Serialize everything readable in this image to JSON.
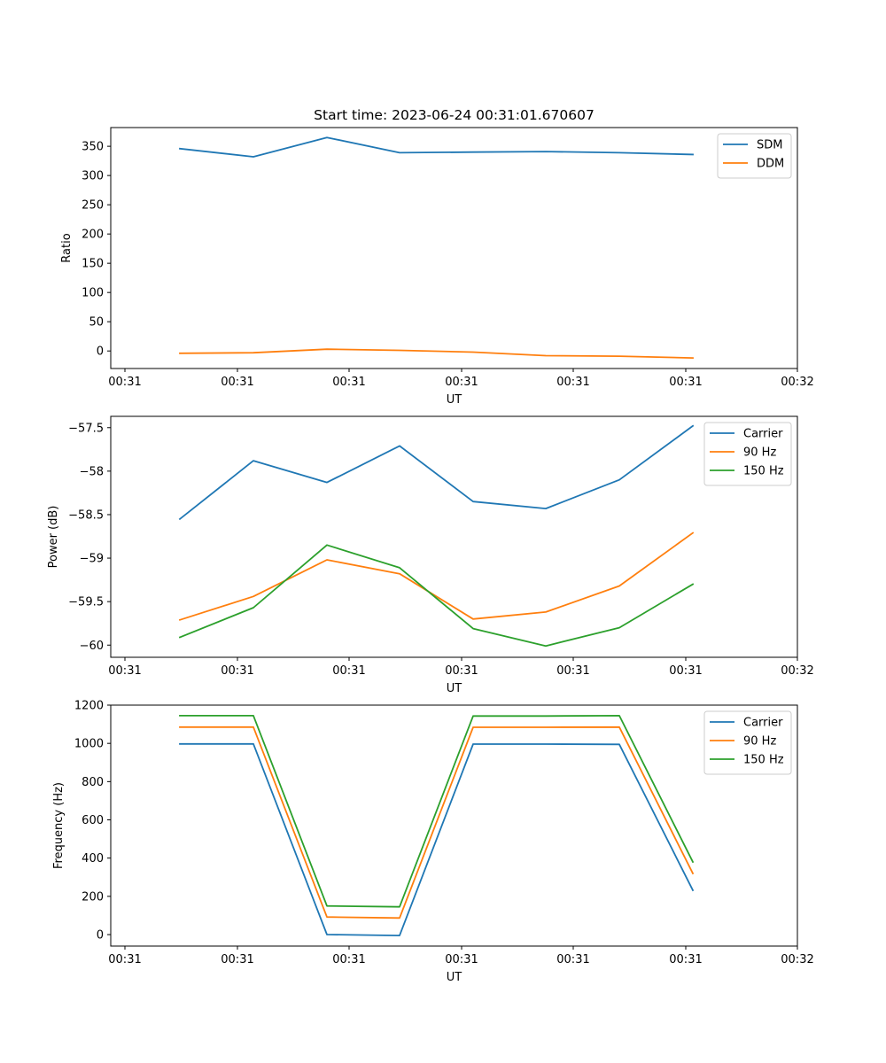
{
  "chart_data": [
    {
      "type": "line",
      "title": "Start time: 2023-06-24 00:31:01.670607",
      "xlabel": "UT",
      "ylabel": "Ratio",
      "x_tick_labels": [
        "00:31",
        "00:31",
        "00:31",
        "00:31",
        "00:31",
        "00:31",
        "00:32"
      ],
      "ylim": [
        -30,
        382
      ],
      "yticks": [
        0,
        50,
        100,
        150,
        200,
        250,
        300,
        350
      ],
      "legend_position": "top-right",
      "grid": false,
      "series": [
        {
          "name": "SDM",
          "color": "#1f77b4",
          "values": [
            346,
            332,
            365,
            339,
            340,
            341,
            339,
            336
          ]
        },
        {
          "name": "DDM",
          "color": "#ff7f0e",
          "values": [
            -4,
            -3,
            3,
            1,
            -2,
            -8,
            -9,
            -12
          ]
        }
      ]
    },
    {
      "type": "line",
      "title": "",
      "xlabel": "UT",
      "ylabel": "Power (dB)",
      "x_tick_labels": [
        "00:31",
        "00:31",
        "00:31",
        "00:31",
        "00:31",
        "00:31",
        "00:32"
      ],
      "ylim": [
        -60.14,
        -57.37
      ],
      "yticks": [
        -60.0,
        -59.5,
        -59.0,
        -58.5,
        -58.0,
        -57.5
      ],
      "legend_position": "top-right",
      "grid": false,
      "series": [
        {
          "name": "Carrier",
          "color": "#1f77b4",
          "values": [
            -58.55,
            -57.88,
            -58.13,
            -57.71,
            -58.35,
            -58.43,
            -58.1,
            -57.48
          ]
        },
        {
          "name": "90 Hz",
          "color": "#ff7f0e",
          "values": [
            -59.71,
            -59.44,
            -59.02,
            -59.18,
            -59.7,
            -59.62,
            -59.32,
            -58.71
          ]
        },
        {
          "name": "150 Hz",
          "color": "#2ca02c",
          "values": [
            -59.91,
            -59.57,
            -58.85,
            -59.11,
            -59.81,
            -60.01,
            -59.8,
            -59.3
          ]
        }
      ]
    },
    {
      "type": "line",
      "title": "",
      "xlabel": "UT",
      "ylabel": "Frequency (Hz)",
      "x_tick_labels": [
        "00:31",
        "00:31",
        "00:31",
        "00:31",
        "00:31",
        "00:31",
        "00:32"
      ],
      "ylim": [
        -60,
        1200
      ],
      "yticks": [
        0,
        200,
        400,
        600,
        800,
        1000,
        1200
      ],
      "legend_position": "top-right",
      "grid": false,
      "series": [
        {
          "name": "Carrier",
          "color": "#1f77b4",
          "values": [
            997,
            997,
            0,
            -5,
            996,
            996,
            995,
            232
          ]
        },
        {
          "name": "90 Hz",
          "color": "#ff7f0e",
          "values": [
            1085,
            1085,
            92,
            87,
            1084,
            1084,
            1085,
            320
          ]
        },
        {
          "name": "150 Hz",
          "color": "#2ca02c",
          "values": [
            1145,
            1145,
            150,
            145,
            1143,
            1143,
            1145,
            380
          ]
        }
      ]
    }
  ]
}
